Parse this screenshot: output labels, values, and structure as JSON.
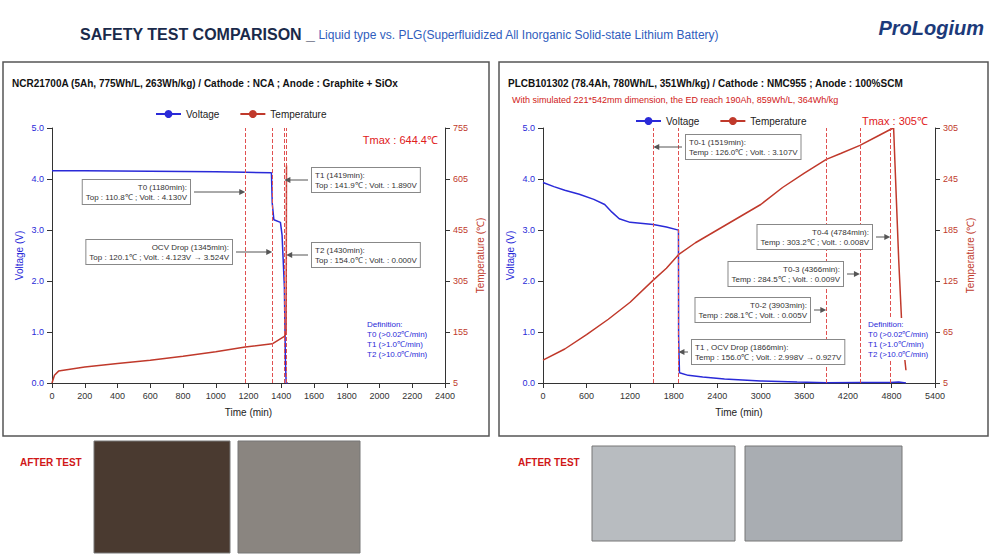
{
  "header": {
    "title": "SAFETY TEST COMPARISON _",
    "subtitle": "Liquid type vs. PLG(Superfluidized All Inorganic Solid-state Lithium Battery)",
    "logo": "ProLogium"
  },
  "after_test": [
    "AFTER TEST",
    "AFTER TEST"
  ],
  "chart_data": [
    {
      "type": "line",
      "title": "NCR21700A (5Ah, 775Wh/L, 263Wh/kg) / Cathode : NCA ; Anode : Graphite + SiOx",
      "x_label": "Time (min)",
      "y_label": "Voltage (V)",
      "y2_label": "Temperature (℃)",
      "xlim": [
        0,
        2400
      ],
      "xticks": [
        0,
        200,
        400,
        600,
        800,
        1000,
        1200,
        1400,
        1600,
        1800,
        2000,
        2200,
        2400
      ],
      "ylim": [
        0,
        5
      ],
      "yticks": [
        {
          "value": 0,
          "label": "0.0"
        },
        {
          "value": 1,
          "label": "1.0"
        },
        {
          "value": 2,
          "label": "2.0"
        },
        {
          "value": 3,
          "label": "3.0"
        },
        {
          "value": 4,
          "label": "4.0"
        },
        {
          "value": 5,
          "label": "5.0"
        }
      ],
      "y2lim": [
        5,
        755
      ],
      "y2ticks": [
        5,
        155,
        305,
        455,
        605,
        755
      ],
      "grid": false,
      "legend": "top",
      "series": [
        {
          "name": "Voltage",
          "color": "#2a2ad8",
          "x": [
            0,
            200,
            400,
            600,
            800,
            1000,
            1180,
            1340,
            1345,
            1355,
            1395,
            1405,
            1419,
            1425,
            1430,
            1440
          ],
          "values": [
            4.16,
            4.16,
            4.155,
            4.15,
            4.145,
            4.14,
            4.13,
            4.123,
            3.524,
            3.2,
            3.15,
            2.9,
            1.89,
            0.5,
            0,
            0
          ]
        },
        {
          "name": "Temperature",
          "color": "#c0392b",
          "axis": "y2",
          "x": [
            0,
            15,
            40,
            100,
            200,
            400,
            600,
            800,
            1000,
            1180,
            1345,
            1419,
            1430,
            1432
          ],
          "values": [
            5,
            28,
            40,
            45,
            52,
            62,
            72,
            84,
            97,
            110.8,
            120.1,
            141.9,
            154,
            644.4
          ]
        }
      ],
      "events": [
        {
          "x": 1180,
          "label": "T0 (1180min):\nTop : 110.8℃ ; Volt. : 4.130V"
        },
        {
          "x": 1345,
          "label": "OCV Drop (1345min):\nTop : 120.1℃ ; Volt. : 4.123V → 3.524V"
        },
        {
          "x": 1419,
          "label": "T1 (1419min):\nTop : 141.9℃ ; Volt. : 1.890V"
        },
        {
          "x": 1430,
          "label": "T2 (1430min):\nTop : 154.0℃ ; Volt. : 0.000V"
        }
      ],
      "annotations": [
        {
          "text": "Tmax : 644.4℃",
          "color": "#e0201b"
        },
        {
          "text": "Definition:\nT0 (>0.02℃/min)\nT1 (>1.0℃/min)\nT2 (>10.0℃/min)",
          "color": "#2a2ad8"
        }
      ]
    },
    {
      "type": "line",
      "title": "PLCB101302 (78.4Ah, 780Wh/L, 351Wh/kg) / Cathode : NMC955 ; Anode : 100%SCM",
      "subtitle": "With simulated 221*542mm dimension, the ED reach 190Ah, 859Wh/L, 364Wh/kg",
      "x_label": "Time (min)",
      "y_label": "Voltage (V)",
      "y2_label": "Temperature (℃)",
      "xlim": [
        0,
        5400
      ],
      "xticks": [
        0,
        600,
        1200,
        1800,
        2400,
        3000,
        3600,
        4200,
        4800,
        5400
      ],
      "ylim": [
        0,
        5
      ],
      "yticks": [
        {
          "value": 0,
          "label": "0.0"
        },
        {
          "value": 1,
          "label": "1.0"
        },
        {
          "value": 2,
          "label": "2.0"
        },
        {
          "value": 3,
          "label": "3.0"
        },
        {
          "value": 4,
          "label": "4.0"
        },
        {
          "value": 5,
          "label": "5.0"
        }
      ],
      "y2lim": [
        5,
        305
      ],
      "y2ticks": [
        5,
        65,
        125,
        185,
        245,
        305
      ],
      "grid": false,
      "legend": "top",
      "series": [
        {
          "name": "Voltage",
          "color": "#2a2ad8",
          "x": [
            0,
            150,
            300,
            500,
            700,
            850,
            950,
            1050,
            1200,
            1519,
            1700,
            1866,
            1868,
            1880,
            2000,
            2200,
            2500,
            3000,
            3500,
            3903,
            4366,
            4784,
            4900,
            5000
          ],
          "values": [
            3.93,
            3.85,
            3.78,
            3.7,
            3.6,
            3.5,
            3.35,
            3.22,
            3.15,
            3.107,
            3.06,
            2.998,
            0.927,
            0.2,
            0.15,
            0.12,
            0.08,
            0.04,
            0.02,
            0.005,
            0.009,
            0.008,
            0.02,
            0
          ]
        },
        {
          "name": "Temperature",
          "color": "#c0392b",
          "axis": "y2",
          "x": [
            0,
            300,
            600,
            900,
            1200,
            1519,
            1700,
            1866,
            2100,
            2400,
            2700,
            3000,
            3300,
            3600,
            3903,
            4100,
            4366,
            4600,
            4784,
            4830,
            4850,
            4900,
            4950,
            5000
          ],
          "values": [
            32,
            45,
            62,
            80,
            100,
            126,
            140,
            156,
            170,
            185,
            200,
            215,
            235,
            252,
            268.1,
            275,
            284.5,
            295,
            303.2,
            305,
            260,
            150,
            60,
            20
          ]
        }
      ],
      "events": [
        {
          "x": 1519,
          "label": "T0-1 (1519min):\nTemp : 126.0℃ ; Volt. : 3.107V"
        },
        {
          "x": 1866,
          "label": "T1 , OCV Drop (1866min):\nTemp : 156.0℃ ; Volt. : 2.998V → 0.927V"
        },
        {
          "x": 3903,
          "label": "T0-2 (3903min):\nTemp : 268.1℃ ; Volt. : 0.005V"
        },
        {
          "x": 4366,
          "label": "T0-3 (4366min):\nTemp : 284.5℃ ; Volt. : 0.009V"
        },
        {
          "x": 4784,
          "label": "T0-4 (4784min):\nTemp : 303.2℃ ; Volt. : 0.008V"
        }
      ],
      "annotations": [
        {
          "text": "Tmax : 305℃",
          "color": "#e0201b"
        },
        {
          "text": "Definition:\nT0 (>0.02℃/min)\nT1 (>1.0℃/min)\nT2 (>10.0℃/min)",
          "color": "#2a2ad8"
        }
      ]
    }
  ]
}
